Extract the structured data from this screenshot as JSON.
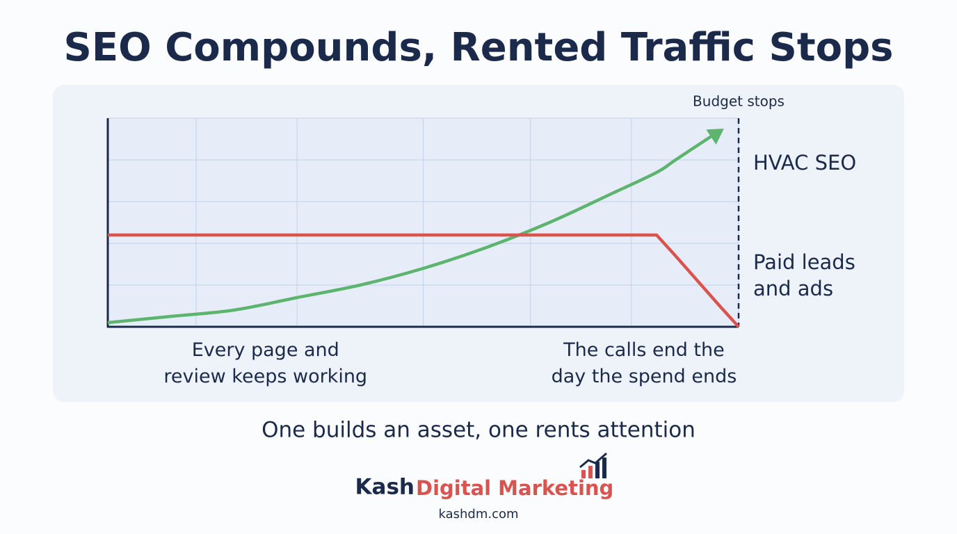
{
  "chart_data": {
    "type": "line",
    "title": "SEO Compounds, Rented Traffic Stops",
    "x": [
      0,
      1,
      2,
      3,
      4,
      5,
      6,
      7,
      8,
      8.7,
      9,
      9.7,
      10
    ],
    "series": [
      {
        "name": "HVAC SEO",
        "color": "#5cb46e",
        "values": [
          0.1,
          0.25,
          0.4,
          0.7,
          1.0,
          1.4,
          1.9,
          2.5,
          3.2,
          3.7,
          4.0,
          4.7,
          null
        ]
      },
      {
        "name": "Paid leads and ads",
        "color": "#d9534f",
        "values": [
          2.2,
          2.2,
          2.2,
          2.2,
          2.2,
          2.2,
          2.2,
          2.2,
          2.2,
          2.2,
          1.7,
          0.5,
          0
        ]
      }
    ],
    "xlim": [
      0,
      10
    ],
    "ylim": [
      0,
      5
    ],
    "xticks": [
      0,
      1.4,
      3,
      5,
      6.7,
      8.3,
      10
    ],
    "yticks": [
      0,
      1,
      2,
      3,
      4,
      5
    ],
    "grid": true,
    "marker_line": {
      "x": 10,
      "label": "Budget stops"
    },
    "annotations": [
      {
        "x": 2.5,
        "text": "Every page and review keeps working"
      },
      {
        "x": 8.5,
        "text": "The calls end the day the spend ends"
      }
    ],
    "subtitle": "One builds an asset, one rents attention",
    "brand": {
      "name": "Kash",
      "name_accent": "Digital Marketing",
      "url": "kashdm.com"
    }
  }
}
